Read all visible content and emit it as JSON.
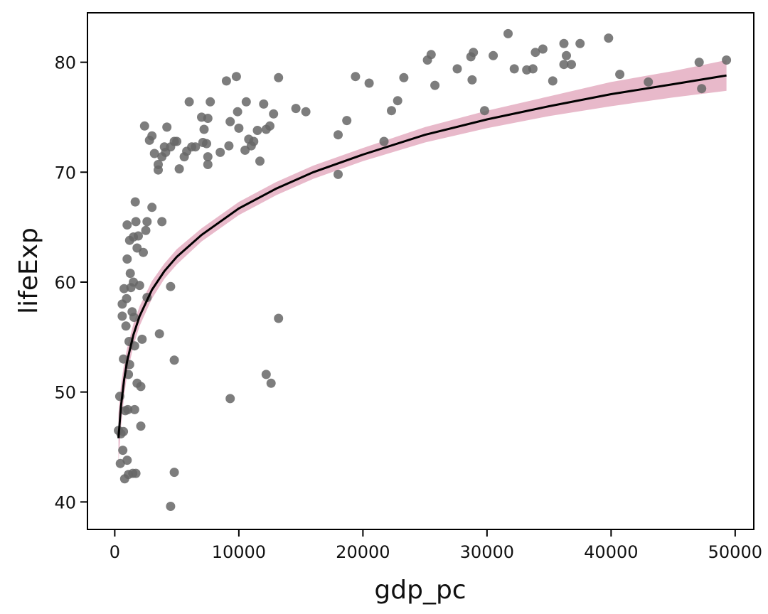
{
  "chart_data": {
    "type": "scatter",
    "title": "",
    "xlabel": "gdp_pc",
    "ylabel": "lifeExp",
    "xlim": [
      -2200,
      51500
    ],
    "ylim": [
      37.5,
      84.5
    ],
    "x_ticks": [
      0,
      10000,
      20000,
      30000,
      40000,
      50000
    ],
    "x_tick_labels": [
      "0",
      "10000",
      "20000",
      "30000",
      "40000",
      "50000"
    ],
    "y_ticks": [
      40,
      50,
      60,
      70,
      80
    ],
    "y_tick_labels": [
      "40",
      "50",
      "60",
      "70",
      "80"
    ],
    "grid": false,
    "colors": {
      "points": "#666666",
      "fit_line": "#000000",
      "confidence_band": "#d98aa6"
    },
    "fit": {
      "model": "lifeExp = a + b * ln(gdp_pc)",
      "x": [
        300,
        500,
        750,
        1000,
        1500,
        2000,
        3000,
        4000,
        5000,
        7000,
        10000,
        13000,
        16000,
        20000,
        25000,
        30000,
        35000,
        40000,
        45000,
        49300
      ],
      "y": [
        45.8,
        48.7,
        51.1,
        52.8,
        55.2,
        56.9,
        59.3,
        61.0,
        62.3,
        64.3,
        66.7,
        68.5,
        70.0,
        71.6,
        73.4,
        74.8,
        76.0,
        77.1,
        78.0,
        78.8
      ],
      "band_lower": [
        43.5,
        46.8,
        49.6,
        51.6,
        54.2,
        56.0,
        58.5,
        60.3,
        61.6,
        63.7,
        66.1,
        67.9,
        69.4,
        71.0,
        72.7,
        74.0,
        75.1,
        76.0,
        76.8,
        77.4
      ],
      "band_upper": [
        48.1,
        50.6,
        52.6,
        54.0,
        56.2,
        57.8,
        60.1,
        61.7,
        63.0,
        64.9,
        67.3,
        69.1,
        70.6,
        72.2,
        74.1,
        75.6,
        76.9,
        78.2,
        79.2,
        80.2
      ]
    },
    "points": [
      [
        300,
        46.5
      ],
      [
        400,
        49.6
      ],
      [
        450,
        43.5
      ],
      [
        500,
        46.2
      ],
      [
        600,
        56.9
      ],
      [
        600,
        58.0
      ],
      [
        650,
        44.7
      ],
      [
        700,
        46.4
      ],
      [
        700,
        53.0
      ],
      [
        750,
        59.4
      ],
      [
        800,
        42.1
      ],
      [
        850,
        48.3
      ],
      [
        900,
        56.0
      ],
      [
        950,
        58.5
      ],
      [
        1000,
        62.1
      ],
      [
        1000,
        65.2
      ],
      [
        1000,
        43.8
      ],
      [
        1050,
        48.4
      ],
      [
        1100,
        42.5
      ],
      [
        1100,
        51.6
      ],
      [
        1150,
        54.6
      ],
      [
        1200,
        63.8
      ],
      [
        1200,
        52.5
      ],
      [
        1250,
        60.8
      ],
      [
        1300,
        59.5
      ],
      [
        1400,
        57.3
      ],
      [
        1450,
        42.6
      ],
      [
        1500,
        64.1
      ],
      [
        1500,
        60.0
      ],
      [
        1550,
        56.8
      ],
      [
        1600,
        54.2
      ],
      [
        1600,
        48.4
      ],
      [
        1650,
        67.3
      ],
      [
        1700,
        65.5
      ],
      [
        1700,
        42.6
      ],
      [
        1800,
        63.1
      ],
      [
        1800,
        50.8
      ],
      [
        1900,
        64.2
      ],
      [
        2000,
        59.7
      ],
      [
        2100,
        50.5
      ],
      [
        2100,
        46.9
      ],
      [
        2200,
        54.8
      ],
      [
        2300,
        62.7
      ],
      [
        2400,
        74.2
      ],
      [
        2500,
        64.7
      ],
      [
        2600,
        65.5
      ],
      [
        2600,
        58.6
      ],
      [
        2800,
        72.9
      ],
      [
        3000,
        73.3
      ],
      [
        3000,
        66.8
      ],
      [
        3200,
        71.7
      ],
      [
        3500,
        70.7
      ],
      [
        3500,
        70.2
      ],
      [
        3600,
        55.3
      ],
      [
        3800,
        65.5
      ],
      [
        3800,
        71.4
      ],
      [
        4000,
        72.3
      ],
      [
        4100,
        71.8
      ],
      [
        4200,
        74.1
      ],
      [
        4500,
        72.3
      ],
      [
        4500,
        59.6
      ],
      [
        4500,
        39.6
      ],
      [
        4800,
        72.8
      ],
      [
        4800,
        52.9
      ],
      [
        4800,
        42.7
      ],
      [
        5000,
        72.8
      ],
      [
        5200,
        70.3
      ],
      [
        5600,
        71.4
      ],
      [
        5800,
        71.9
      ],
      [
        6000,
        76.4
      ],
      [
        6200,
        72.3
      ],
      [
        6500,
        72.3
      ],
      [
        7000,
        75.0
      ],
      [
        7100,
        72.7
      ],
      [
        7200,
        73.9
      ],
      [
        7400,
        72.6
      ],
      [
        7500,
        74.9
      ],
      [
        7500,
        71.4
      ],
      [
        7500,
        70.7
      ],
      [
        7700,
        76.4
      ],
      [
        8500,
        71.8
      ],
      [
        9000,
        78.3
      ],
      [
        9200,
        72.4
      ],
      [
        9300,
        74.6
      ],
      [
        9300,
        49.4
      ],
      [
        9800,
        78.7
      ],
      [
        9900,
        75.5
      ],
      [
        10000,
        74.0
      ],
      [
        10500,
        72.0
      ],
      [
        10600,
        76.4
      ],
      [
        10800,
        73.0
      ],
      [
        11000,
        72.4
      ],
      [
        11200,
        72.8
      ],
      [
        11500,
        73.8
      ],
      [
        11700,
        71.0
      ],
      [
        12000,
        76.2
      ],
      [
        12200,
        73.9
      ],
      [
        12200,
        51.6
      ],
      [
        12500,
        74.2
      ],
      [
        12600,
        50.8
      ],
      [
        12800,
        75.3
      ],
      [
        13200,
        78.6
      ],
      [
        13200,
        56.7
      ],
      [
        14600,
        75.8
      ],
      [
        15400,
        75.5
      ],
      [
        18000,
        73.4
      ],
      [
        18000,
        69.8
      ],
      [
        18700,
        74.7
      ],
      [
        19400,
        78.7
      ],
      [
        20500,
        78.1
      ],
      [
        21700,
        72.8
      ],
      [
        22300,
        75.6
      ],
      [
        22800,
        76.5
      ],
      [
        23300,
        78.6
      ],
      [
        25200,
        80.2
      ],
      [
        25500,
        80.7
      ],
      [
        25800,
        77.9
      ],
      [
        27600,
        79.4
      ],
      [
        28700,
        80.5
      ],
      [
        28800,
        78.4
      ],
      [
        28900,
        80.9
      ],
      [
        29800,
        75.6
      ],
      [
        30500,
        80.6
      ],
      [
        31700,
        82.6
      ],
      [
        32200,
        79.4
      ],
      [
        33200,
        79.3
      ],
      [
        33700,
        79.4
      ],
      [
        33900,
        80.9
      ],
      [
        34500,
        81.2
      ],
      [
        35300,
        78.3
      ],
      [
        36200,
        81.7
      ],
      [
        36200,
        79.8
      ],
      [
        36400,
        80.6
      ],
      [
        36800,
        79.8
      ],
      [
        37500,
        81.7
      ],
      [
        39800,
        82.2
      ],
      [
        40700,
        78.9
      ],
      [
        43000,
        78.2
      ],
      [
        47100,
        80.0
      ],
      [
        47300,
        77.6
      ],
      [
        49300,
        80.2
      ]
    ]
  }
}
